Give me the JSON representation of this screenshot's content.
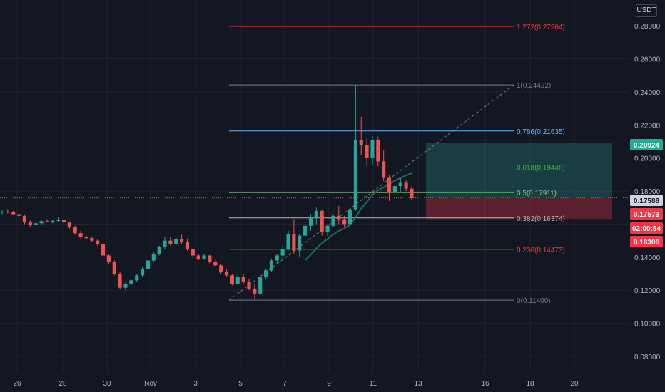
{
  "currency": "USDT",
  "chart_data": {
    "type": "candlestick",
    "y_axis": {
      "ticks": [
        "0.28000",
        "0.26000",
        "0.24000",
        "0.22000",
        "0.20000",
        "0.18000",
        "0.16000",
        "0.14000",
        "0.12000",
        "0.10000",
        "0.08000"
      ],
      "range": [
        0.0705,
        0.2956
      ]
    },
    "x_axis": {
      "ticks": [
        "26",
        "28",
        "30",
        "Nov",
        "3",
        "5",
        "7",
        "9",
        "11",
        "13",
        "16",
        "18",
        "20"
      ]
    },
    "fibonacci": [
      {
        "label": "1.272(0.27964)",
        "value": 0.27964,
        "color": "#f23645"
      },
      {
        "label": "1(0.24422)",
        "value": 0.24422,
        "color": "#787b86"
      },
      {
        "label": "0.786(0.21635)",
        "value": 0.21635,
        "color": "#64b5f6"
      },
      {
        "label": "0.618(0.19448)",
        "value": 0.19448,
        "color": "#4caf50"
      },
      {
        "label": "0.5(0.17911)",
        "value": 0.17911,
        "color": "#81c784"
      },
      {
        "label": "0.382(0.16374)",
        "value": 0.16374,
        "color": "#b2b5be"
      },
      {
        "label": "0.236(0.14473)",
        "value": 0.14473,
        "color": "#f23645"
      },
      {
        "label": "0(0.11400)",
        "value": 0.114,
        "color": "#787b86"
      }
    ],
    "position": {
      "target": 0.20924,
      "entry": 0.17588,
      "stop": 0.16306
    },
    "price_tags": [
      {
        "label": "0.20924",
        "value": 0.20924,
        "bg": "#22ab94",
        "fg": "#ffffff"
      },
      {
        "label": "0.17588",
        "value": 0.17588,
        "bg": "#d1d4dc",
        "fg": "#131722"
      },
      {
        "label": "0.17573",
        "value": 0.17573,
        "bg": "#f23645",
        "fg": "#ffffff"
      },
      {
        "label": "02:00:54",
        "value": 0.1687,
        "bg": "#f23645",
        "fg": "#ffffff"
      },
      {
        "label": "0.16306",
        "value": 0.16306,
        "bg": "#f23645",
        "fg": "#ffffff"
      }
    ],
    "candles": [
      [
        0.167,
        0.1685,
        0.166,
        0.1675
      ],
      [
        0.1675,
        0.169,
        0.1665,
        0.167
      ],
      [
        0.1672,
        0.168,
        0.1655,
        0.166
      ],
      [
        0.166,
        0.1668,
        0.164,
        0.165
      ],
      [
        0.165,
        0.1655,
        0.16,
        0.161
      ],
      [
        0.161,
        0.1625,
        0.1585,
        0.1595
      ],
      [
        0.1595,
        0.1615,
        0.159,
        0.1605
      ],
      [
        0.1605,
        0.1625,
        0.1598,
        0.1618
      ],
      [
        0.1618,
        0.163,
        0.161,
        0.1615
      ],
      [
        0.1615,
        0.1628,
        0.1605,
        0.162
      ],
      [
        0.162,
        0.164,
        0.1615,
        0.1625
      ],
      [
        0.1625,
        0.1632,
        0.16,
        0.161
      ],
      [
        0.161,
        0.1615,
        0.157,
        0.158
      ],
      [
        0.158,
        0.159,
        0.1535,
        0.1545
      ],
      [
        0.1545,
        0.156,
        0.151,
        0.152
      ],
      [
        0.152,
        0.153,
        0.1505,
        0.1515
      ],
      [
        0.1515,
        0.1525,
        0.149,
        0.15
      ],
      [
        0.15,
        0.151,
        0.147,
        0.148
      ],
      [
        0.148,
        0.149,
        0.14,
        0.141
      ],
      [
        0.141,
        0.142,
        0.136,
        0.137
      ],
      [
        0.137,
        0.138,
        0.129,
        0.13
      ],
      [
        0.13,
        0.131,
        0.1205,
        0.1215
      ],
      [
        0.1215,
        0.125,
        0.12,
        0.124
      ],
      [
        0.124,
        0.127,
        0.123,
        0.126
      ],
      [
        0.126,
        0.13,
        0.125,
        0.129
      ],
      [
        0.129,
        0.134,
        0.128,
        0.133
      ],
      [
        0.133,
        0.139,
        0.132,
        0.138
      ],
      [
        0.138,
        0.143,
        0.137,
        0.142
      ],
      [
        0.142,
        0.147,
        0.141,
        0.146
      ],
      [
        0.146,
        0.152,
        0.145,
        0.15
      ],
      [
        0.15,
        0.152,
        0.147,
        0.148
      ],
      [
        0.148,
        0.152,
        0.1475,
        0.151
      ],
      [
        0.151,
        0.1535,
        0.148,
        0.149
      ],
      [
        0.149,
        0.151,
        0.144,
        0.145
      ],
      [
        0.145,
        0.146,
        0.14,
        0.141
      ],
      [
        0.141,
        0.142,
        0.138,
        0.139
      ],
      [
        0.139,
        0.142,
        0.1385,
        0.141
      ],
      [
        0.141,
        0.1415,
        0.136,
        0.137
      ],
      [
        0.137,
        0.139,
        0.134,
        0.135
      ],
      [
        0.135,
        0.136,
        0.13,
        0.131
      ],
      [
        0.131,
        0.1325,
        0.128,
        0.129
      ],
      [
        0.129,
        0.13,
        0.123,
        0.124
      ],
      [
        0.124,
        0.1295,
        0.1235,
        0.128
      ],
      [
        0.128,
        0.13,
        0.124,
        0.125
      ],
      [
        0.125,
        0.127,
        0.12,
        0.121
      ],
      [
        0.121,
        0.124,
        0.115,
        0.118
      ],
      [
        0.118,
        0.129,
        0.116,
        0.128
      ],
      [
        0.128,
        0.133,
        0.127,
        0.132
      ],
      [
        0.132,
        0.139,
        0.131,
        0.138
      ],
      [
        0.138,
        0.142,
        0.136,
        0.141
      ],
      [
        0.141,
        0.147,
        0.139,
        0.145
      ],
      [
        0.145,
        0.156,
        0.144,
        0.154
      ],
      [
        0.154,
        0.163,
        0.142,
        0.144
      ],
      [
        0.144,
        0.154,
        0.14,
        0.153
      ],
      [
        0.153,
        0.161,
        0.15,
        0.159
      ],
      [
        0.159,
        0.166,
        0.156,
        0.164
      ],
      [
        0.164,
        0.17,
        0.16,
        0.168
      ],
      [
        0.168,
        0.169,
        0.153,
        0.155
      ],
      [
        0.155,
        0.16,
        0.153,
        0.159
      ],
      [
        0.159,
        0.166,
        0.158,
        0.165
      ],
      [
        0.165,
        0.171,
        0.16,
        0.163
      ],
      [
        0.163,
        0.165,
        0.158,
        0.16
      ],
      [
        0.16,
        0.21,
        0.158,
        0.169
      ],
      [
        0.169,
        0.2442,
        0.168,
        0.211
      ],
      [
        0.211,
        0.225,
        0.202,
        0.208
      ],
      [
        0.208,
        0.212,
        0.195,
        0.2
      ],
      [
        0.2,
        0.213,
        0.196,
        0.211
      ],
      [
        0.211,
        0.213,
        0.195,
        0.198
      ],
      [
        0.198,
        0.205,
        0.186,
        0.188
      ],
      [
        0.188,
        0.19,
        0.174,
        0.179
      ],
      [
        0.179,
        0.185,
        0.176,
        0.183
      ],
      [
        0.183,
        0.188,
        0.179,
        0.185
      ],
      [
        0.185,
        0.187,
        0.18,
        0.1815
      ],
      [
        0.1815,
        0.183,
        0.1745,
        0.1757
      ]
    ],
    "colors": {
      "up": "#26a69a",
      "down": "#ef5350",
      "target_zone": "#26a69a",
      "stop_zone": "#f23645",
      "moving_average": "#1e6b5e",
      "grid": "#1f2330",
      "axis_text": "#b2b5be",
      "background": "#131722"
    }
  }
}
